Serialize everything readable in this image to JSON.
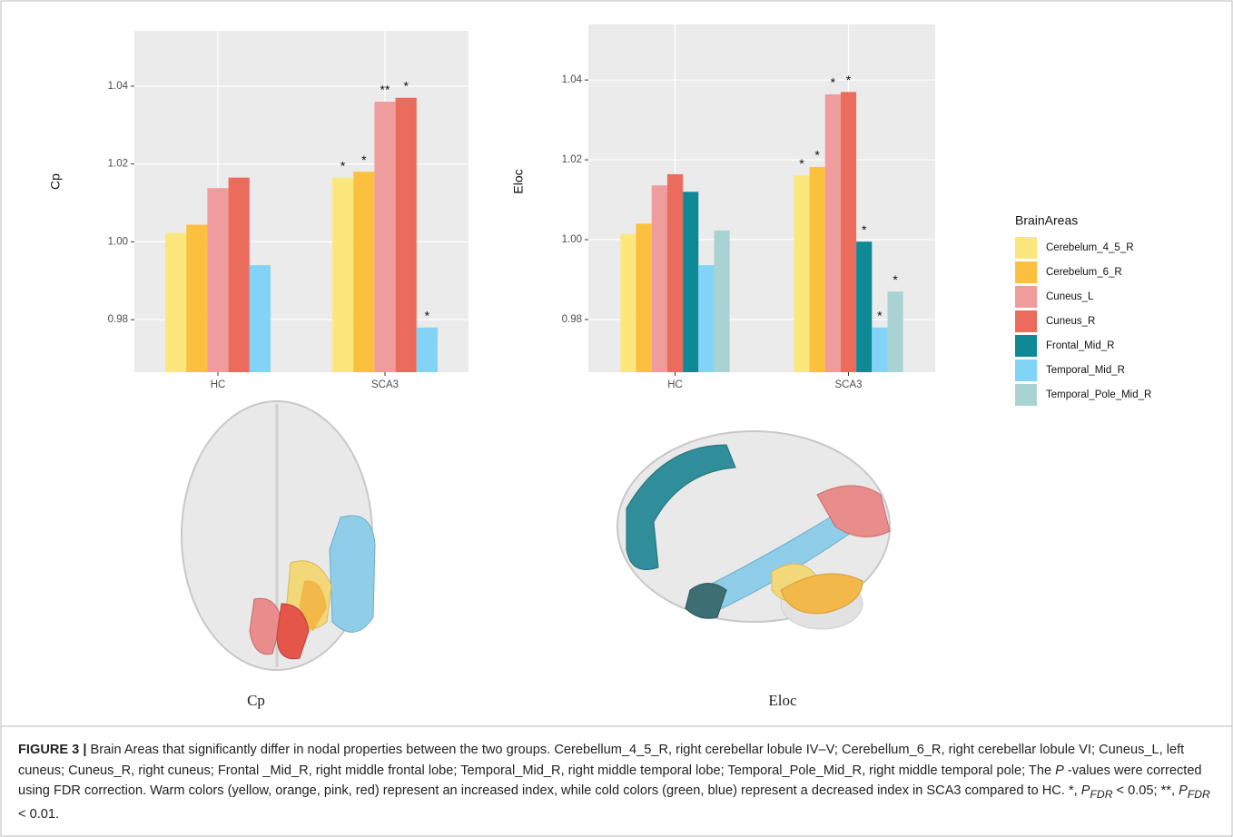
{
  "chart_data": [
    {
      "type": "bar",
      "y_label": "Cp",
      "categories": [
        "HC",
        "SCA3"
      ],
      "ylim": [
        0.9665,
        1.0542
      ],
      "yticks": [
        0.98,
        {
          "value": 1,
          "label": "1.00"
        },
        1.02,
        1.04
      ],
      "grid": true,
      "series": [
        {
          "color": "#fce77d",
          "values": [
            1.0023,
            1.0165
          ],
          "significance": [
            null,
            "*"
          ]
        },
        {
          "color": "#fbc03d",
          "values": [
            1.0044,
            1.018
          ],
          "significance": [
            null,
            "*"
          ]
        },
        {
          "color": "#f09c9c",
          "values": [
            1.0138,
            1.036
          ],
          "significance": [
            null,
            "**"
          ]
        },
        {
          "color": "#eb6b5c",
          "values": [
            1.0165,
            1.037
          ],
          "significance": [
            null,
            "*"
          ]
        },
        {
          "color": "#81d4f5",
          "values": [
            0.994,
            0.978
          ],
          "significance": [
            null,
            "*"
          ]
        }
      ]
    },
    {
      "type": "bar",
      "y_label": "Eloc",
      "categories": [
        "HC",
        "SCA3"
      ],
      "ylim": [
        0.9668,
        1.0539
      ],
      "yticks": [
        0.98,
        {
          "value": 1,
          "label": "1.00"
        },
        1.02,
        1.04
      ],
      "grid": true,
      "legend": "right",
      "legend_title": "BrainAreas",
      "series": [
        {
          "name": "Cerebelum_4_5_R",
          "color": "#fce77d",
          "values": [
            1.0014,
            1.0161
          ],
          "significance": [
            null,
            "*"
          ]
        },
        {
          "name": "Cerebelum_6_R",
          "color": "#fbc03d",
          "values": [
            1.004,
            1.0182
          ],
          "significance": [
            null,
            "*"
          ]
        },
        {
          "name": "Cuneus_L",
          "color": "#f09c9c",
          "values": [
            1.0136,
            1.0364
          ],
          "significance": [
            null,
            "*"
          ]
        },
        {
          "name": "Cuneus_R",
          "color": "#eb6b5c",
          "values": [
            1.0164,
            1.037
          ],
          "significance": [
            null,
            "*"
          ]
        },
        {
          "name": "Frontal_Mid_R",
          "color": "#0e8a96",
          "values": [
            1.012,
            0.9995
          ],
          "significance": [
            null,
            "*"
          ]
        },
        {
          "name": "Temporal_Mid_R",
          "color": "#81d4f5",
          "values": [
            0.9936,
            0.978
          ],
          "significance": [
            null,
            "*"
          ]
        },
        {
          "name": "Temporal_Pole_Mid_R",
          "color": "#a9d3d3",
          "values": [
            1.0023,
            0.987
          ],
          "significance": [
            null,
            "*"
          ]
        }
      ]
    }
  ],
  "figure": {
    "image_labels": [
      "Cp",
      "Eloc"
    ],
    "caption": {
      "label": "FIGURE 3 |",
      "parts": [
        " Brain Areas that significantly differ in nodal properties between the two groups. Cerebellum_4_5_R, right cerebellar lobule IV–V; Cerebellum_6_R, right cerebellar lobule VI; Cuneus_L, left cuneus; Cuneus_R, right cuneus; Frontal _Mid_R, right middle frontal lobe; Temporal_Mid_R, right middle temporal lobe; Temporal_Pole_Mid_R, right middle temporal pole; The ",
        "P",
        " -values were corrected using FDR correction. Warm colors (yellow, orange, pink, red) represent an increased index, while cold colors (green, blue) represent a decreased index in SCA3 compared to HC. *, ",
        "P",
        "FDR",
        " < 0.05; **, ",
        "P",
        "FDR",
        " < 0.01."
      ]
    }
  }
}
